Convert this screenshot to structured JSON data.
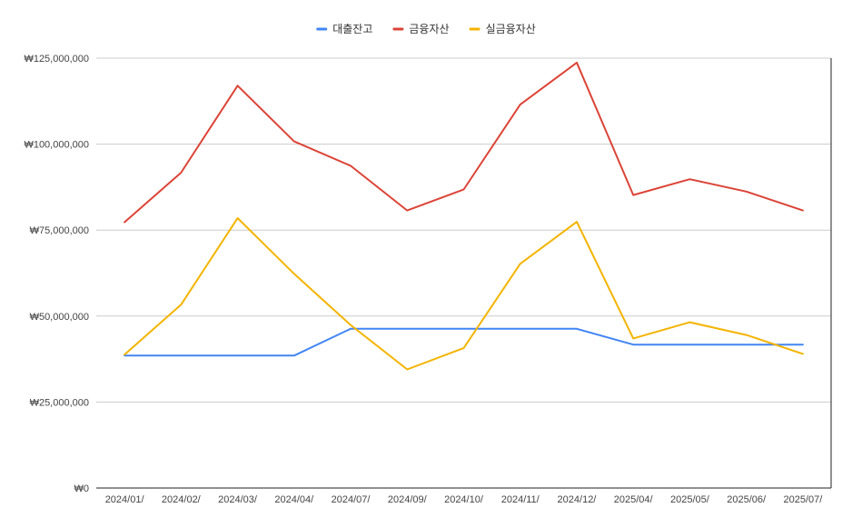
{
  "chart_data": {
    "type": "line",
    "title": "",
    "xlabel": "",
    "ylabel": "",
    "ylim": [
      0,
      125000000
    ],
    "y_ticks": [
      0,
      25000000,
      50000000,
      75000000,
      100000000,
      125000000
    ],
    "y_tick_labels": [
      "₩0",
      "₩25,000,000",
      "₩50,000,000",
      "₩75,000,000",
      "₩100,000,000",
      "₩125,000,000"
    ],
    "grid": true,
    "legend_position": "top-center",
    "categories": [
      "2024/01/",
      "2024/02/",
      "2024/03/",
      "2024/04/",
      "2024/07/",
      "2024/09/",
      "2024/10/",
      "2024/11/",
      "2024/12/",
      "2025/04/",
      "2025/05/",
      "2025/06/",
      "2025/07/"
    ],
    "series": [
      {
        "name": "대출잔고",
        "color": "#4285f4",
        "values": [
          38500000,
          38500000,
          38500000,
          38500000,
          46300000,
          46300000,
          46300000,
          46300000,
          46300000,
          41700000,
          41700000,
          41700000,
          41700000
        ]
      },
      {
        "name": "금융자산",
        "color": "#db4437",
        "values": [
          77300000,
          91700000,
          117000000,
          100800000,
          93700000,
          80700000,
          86800000,
          111500000,
          123700000,
          85200000,
          89800000,
          86200000,
          80700000
        ]
      },
      {
        "name": "실금융자산",
        "color": "#f4b400",
        "values": [
          38800000,
          53300000,
          78500000,
          62300000,
          47400000,
          34500000,
          40700000,
          65200000,
          77400000,
          43500000,
          48200000,
          44500000,
          39000000
        ]
      }
    ]
  }
}
